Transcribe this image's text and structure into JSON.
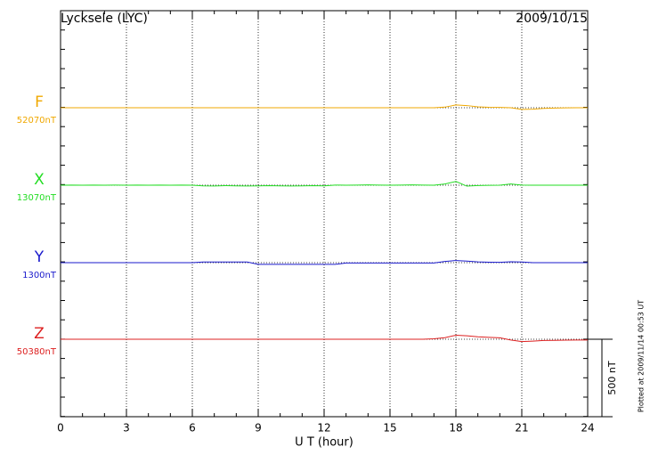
{
  "chart_data": {
    "type": "line",
    "title": "Lycksele (LYC)",
    "date": "2009/10/15",
    "x_label": "U T (hour)",
    "footnote": "Plotted at 2009/11/14 00:53 UT",
    "xlim": [
      0,
      24
    ],
    "xticks": [
      0,
      3,
      6,
      9,
      12,
      15,
      18,
      21,
      24
    ],
    "grid": true,
    "scale_bar": {
      "value": 500,
      "label": "500 nT"
    },
    "x": [
      0,
      0.5,
      1,
      1.5,
      2,
      2.5,
      3,
      3.5,
      4,
      4.5,
      5,
      5.5,
      6,
      6.5,
      7,
      7.5,
      8,
      8.5,
      9,
      9.5,
      10,
      10.5,
      11,
      11.5,
      12,
      12.5,
      13,
      13.5,
      14,
      14.5,
      15,
      15.5,
      16,
      16.5,
      17,
      17.5,
      18,
      18.5,
      19,
      19.5,
      20,
      20.5,
      21,
      21.5,
      22,
      22.5,
      23,
      23.5,
      24
    ],
    "series": [
      {
        "name": "F",
        "color": "#f0a800",
        "baseline": {
          "value": 52070,
          "label": "52070nT"
        },
        "values": [
          52070,
          52070,
          52070,
          52070,
          52070,
          52070,
          52070,
          52070,
          52070,
          52070,
          52070,
          52070,
          52070,
          52070,
          52070,
          52070,
          52070,
          52070,
          52070,
          52070,
          52070,
          52070,
          52070,
          52070,
          52070,
          52070,
          52070,
          52070,
          52070,
          52070,
          52070,
          52070,
          52070,
          52070,
          52070,
          52074,
          52088,
          52084,
          52076,
          52073,
          52072,
          52070,
          52059,
          52061,
          52066,
          52068,
          52069,
          52070,
          52070
        ]
      },
      {
        "name": "X",
        "color": "#22dd22",
        "baseline": {
          "value": 13070,
          "label": "13070nT"
        },
        "values": [
          13070,
          13071,
          13070,
          13071,
          13070,
          13071,
          13070,
          13071,
          13070,
          13071,
          13070,
          13071,
          13070,
          13066,
          13065,
          13067,
          13066,
          13065,
          13066,
          13067,
          13066,
          13065,
          13066,
          13067,
          13066,
          13071,
          13070,
          13071,
          13072,
          13071,
          13070,
          13071,
          13072,
          13071,
          13070,
          13078,
          13094,
          13064,
          13068,
          13069,
          13070,
          13078,
          13071,
          13070,
          13070,
          13070,
          13070,
          13070,
          13070
        ]
      },
      {
        "name": "Y",
        "color": "#1a1acc",
        "baseline": {
          "value": 1300,
          "label": "1300nT"
        },
        "values": [
          1300,
          1300,
          1300,
          1300,
          1300,
          1300,
          1300,
          1300,
          1300,
          1300,
          1300,
          1300,
          1300,
          1304,
          1304,
          1304,
          1304,
          1304,
          1289,
          1289,
          1289,
          1289,
          1289,
          1289,
          1289,
          1289,
          1298,
          1298,
          1298,
          1298,
          1298,
          1298,
          1298,
          1298,
          1298,
          1308,
          1314,
          1310,
          1305,
          1303,
          1302,
          1306,
          1304,
          1300,
          1300,
          1300,
          1300,
          1300,
          1300
        ]
      },
      {
        "name": "Z",
        "color": "#dd2020",
        "baseline": {
          "value": 50380,
          "label": "50380nT"
        },
        "values": [
          50380,
          50380,
          50380,
          50380,
          50380,
          50380,
          50380,
          50380,
          50380,
          50380,
          50380,
          50380,
          50380,
          50380,
          50380,
          50380,
          50380,
          50380,
          50380,
          50380,
          50380,
          50380,
          50380,
          50380,
          50380,
          50380,
          50380,
          50380,
          50380,
          50380,
          50380,
          50380,
          50380,
          50380,
          50383,
          50390,
          50406,
          50402,
          50396,
          50392,
          50389,
          50375,
          50365,
          50368,
          50372,
          50373,
          50374,
          50375,
          50375
        ]
      }
    ]
  }
}
